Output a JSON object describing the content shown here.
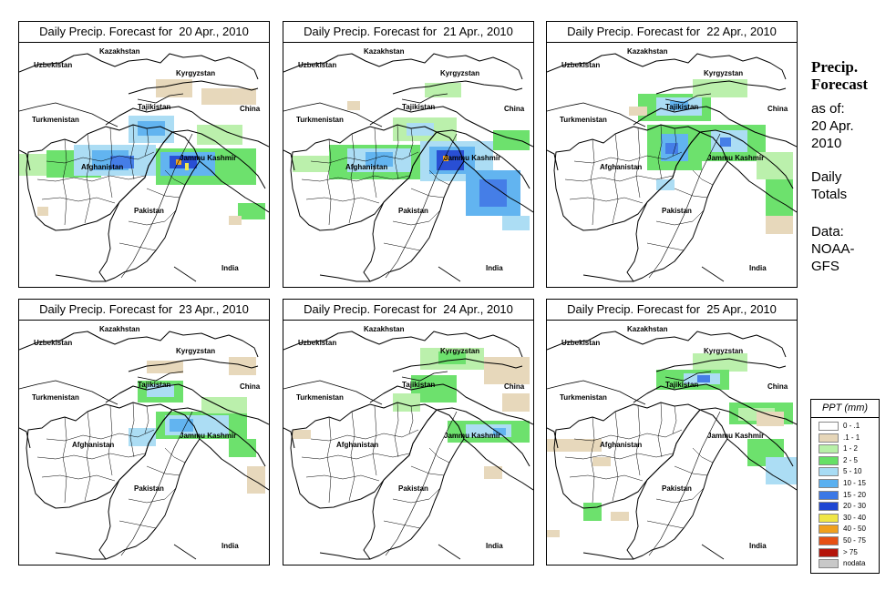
{
  "panels": [
    {
      "title": "Daily Precip. Forecast for  20 Apr., 2010"
    },
    {
      "title": "Daily Precip. Forecast for  21 Apr., 2010"
    },
    {
      "title": "Daily Precip. Forecast for  22 Apr., 2010"
    },
    {
      "title": "Daily Precip. Forecast for  23 Apr., 2010"
    },
    {
      "title": "Daily Precip. Forecast for  24 Apr., 2010"
    },
    {
      "title": "Daily Precip. Forecast for  25 Apr., 2010"
    }
  ],
  "map_labels": {
    "kazakhstan": "Kazakhstan",
    "uzbekistan": "Uzbekistan",
    "kyrgyzstan": "Kyrgyzstan",
    "tajikistan": "Tajikistan",
    "turkmenistan": "Turkmenistan",
    "china": "China",
    "afghanistan": "Afghanistan",
    "jammu_kashmir": "Jammu Kashmir",
    "pakistan": "Pakistan",
    "india": "India"
  },
  "sidebar": {
    "title_line1": "Precip.",
    "title_line2": "Forecast",
    "asof_line1": "as of:",
    "asof_line2": "20 Apr.",
    "asof_line3": "2010",
    "totals_line1": "Daily",
    "totals_line2": "Totals",
    "data_line1": "Data:",
    "data_line2": "NOAA-",
    "data_line3": "GFS"
  },
  "legend": {
    "title": "PPT (mm)",
    "classes": [
      {
        "label": "0 - .1",
        "color": "#ffffff"
      },
      {
        "label": ".1 - 1",
        "color": "#e6d6b8"
      },
      {
        "label": "1 - 2",
        "color": "#b8f0a8"
      },
      {
        "label": "2 - 5",
        "color": "#66e066"
      },
      {
        "label": "5 - 10",
        "color": "#a8dcf4"
      },
      {
        "label": "10 - 15",
        "color": "#5ab0f0"
      },
      {
        "label": "15 - 20",
        "color": "#3c78e6"
      },
      {
        "label": "20 - 30",
        "color": "#1e46d2"
      },
      {
        "label": "30 - 40",
        "color": "#f0e646"
      },
      {
        "label": "40 - 50",
        "color": "#f0a01e"
      },
      {
        "label": "50 - 75",
        "color": "#e65014"
      },
      {
        "label": "> 75",
        "color": "#b4140a"
      },
      {
        "label": "nodata",
        "color": "#c8c8c8"
      }
    ]
  }
}
